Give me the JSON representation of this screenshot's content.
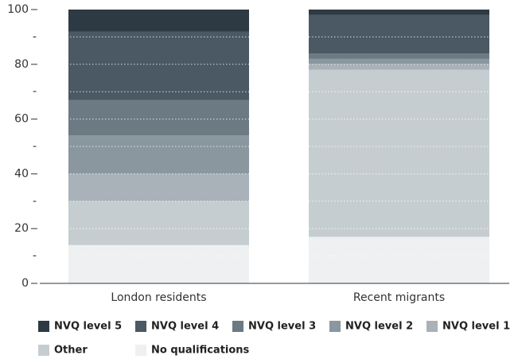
{
  "chart_data": {
    "type": "stacked_bar",
    "categories": [
      "London residents",
      "Recent migrants"
    ],
    "series": [
      {
        "name": "NVQ level 5",
        "color": "#2e3a43",
        "values": [
          8,
          2
        ]
      },
      {
        "name": "NVQ level 4",
        "color": "#4a5963",
        "values": [
          25,
          14
        ]
      },
      {
        "name": "NVQ level 3",
        "color": "#6c7a83",
        "values": [
          13,
          2
        ]
      },
      {
        "name": "NVQ level 2",
        "color": "#8a979f",
        "values": [
          14,
          2
        ]
      },
      {
        "name": "NVQ level 1",
        "color": "#a8b2b8",
        "values": [
          10,
          2
        ]
      },
      {
        "name": "Other",
        "color": "#c6cdd1",
        "values": [
          16,
          61
        ]
      },
      {
        "name": "No qualifications",
        "color": "#eef0f1",
        "values": [
          14,
          17
        ]
      }
    ],
    "ylim": [
      0,
      100
    ],
    "yticks": [
      0,
      20,
      40,
      60,
      80,
      100
    ],
    "minor_yticks": [
      {
        "value": 10,
        "label": "-"
      },
      {
        "value": 30,
        "label": "-"
      },
      {
        "value": 50,
        "label": "-"
      },
      {
        "value": 70,
        "label": "-"
      },
      {
        "value": 90,
        "label": "-"
      }
    ],
    "grid": true
  }
}
